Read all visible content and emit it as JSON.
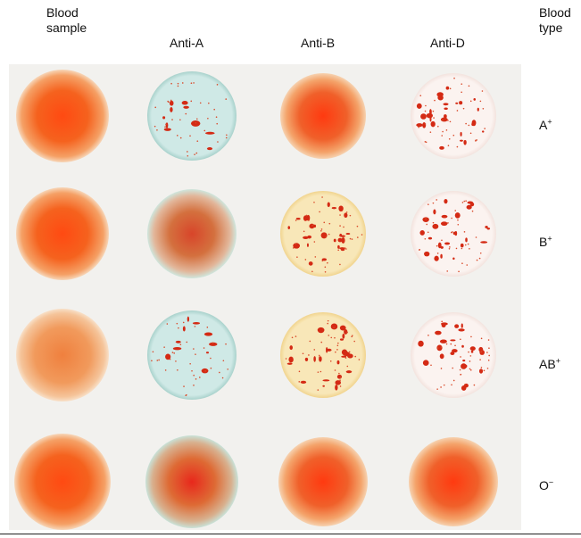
{
  "headers": {
    "left": [
      "Blood",
      "sample"
    ],
    "right": [
      "Blood",
      "type"
    ],
    "columns": [
      "Anti-A",
      "Anti-B",
      "Anti-D"
    ]
  },
  "rows": [
    {
      "label": "A",
      "sign": "+",
      "results": [
        "clear",
        "agglutinated",
        "clear",
        "agglutinated"
      ]
    },
    {
      "label": "B",
      "sign": "+",
      "results": [
        "clear",
        "clear",
        "agglutinated",
        "agglutinated"
      ]
    },
    {
      "label": "AB",
      "sign": "+",
      "results": [
        "clear",
        "agglutinated",
        "agglutinated",
        "agglutinated"
      ]
    },
    {
      "label": "O",
      "sign": "−",
      "results": [
        "clear",
        "clear",
        "clear",
        "clear"
      ]
    }
  ],
  "spot_colors": {
    "blood": "#f25a1e",
    "anti_a": "#cfe9e6",
    "anti_b": "#f8e7b8",
    "anti_d": "#fbf3f0",
    "clump": "#d42a14"
  }
}
